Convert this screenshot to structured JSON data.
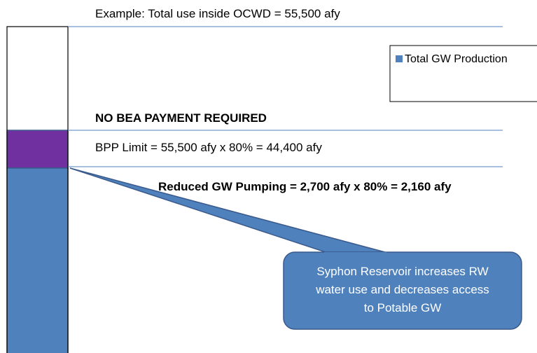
{
  "header": {
    "example": "Example:  Total use inside OCWD = 55,500 afy"
  },
  "legend": {
    "label": "Total GW Production"
  },
  "labels": {
    "no_payment": "NO BEA PAYMENT REQUIRED",
    "bpp_limit": "BPP Limit = 55,500 afy x 80% = 44,400 afy",
    "reduced": "Reduced GW Pumping = 2,700 afy x 80% = 2,160 afy"
  },
  "callout": {
    "lines": [
      "Syphon Reservoir increases RW",
      "water use and decreases access",
      "to Potable GW"
    ]
  }
}
